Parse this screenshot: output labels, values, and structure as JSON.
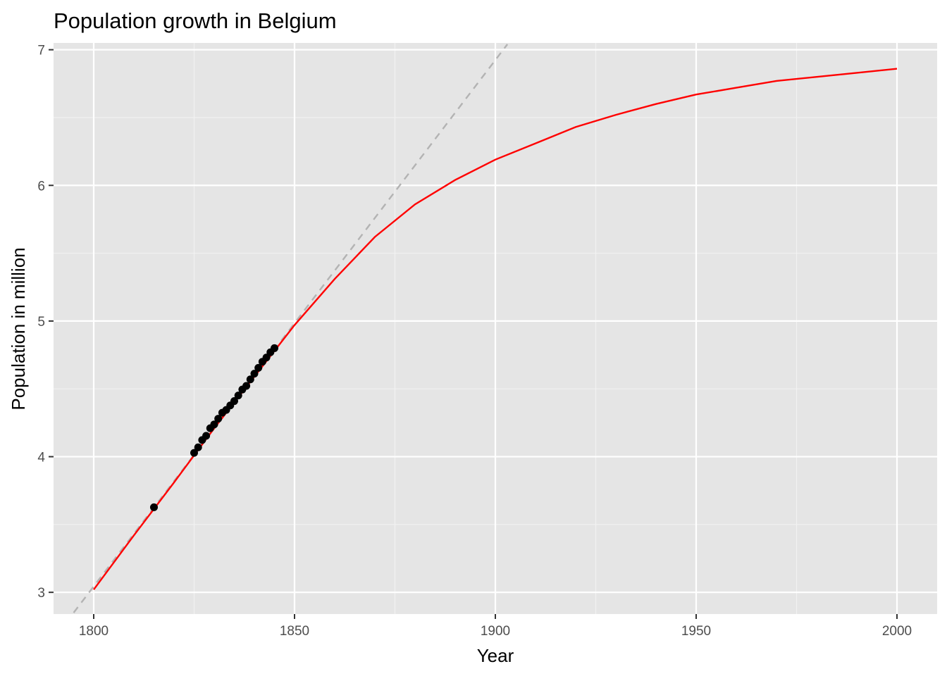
{
  "chart_data": {
    "type": "line",
    "title": "Population growth in Belgium",
    "xlabel": "Year",
    "ylabel": "Population in million",
    "xlim": [
      1790,
      2010
    ],
    "ylim": [
      2.84,
      7.05
    ],
    "xticks": [
      1800,
      1850,
      1900,
      1950,
      2000
    ],
    "xticks_minor": [
      1825,
      1875,
      1925,
      1975
    ],
    "yticks": [
      3,
      4,
      5,
      6,
      7
    ],
    "yticks_minor": [
      3.5,
      4.5,
      5.5,
      6.5
    ],
    "grid": true,
    "background": "#e5e5e5",
    "series": [
      {
        "kind": "scatter",
        "color": "#000000",
        "x": [
          1815,
          1825,
          1826,
          1827,
          1828,
          1829,
          1830,
          1831,
          1832,
          1833,
          1834,
          1835,
          1836,
          1837,
          1838,
          1839,
          1840,
          1841,
          1842,
          1843,
          1844,
          1845
        ],
        "y": [
          3.627,
          4.028,
          4.069,
          4.123,
          4.154,
          4.21,
          4.238,
          4.28,
          4.324,
          4.345,
          4.378,
          4.41,
          4.451,
          4.495,
          4.522,
          4.57,
          4.612,
          4.655,
          4.7,
          4.731,
          4.77,
          4.8
        ]
      },
      {
        "kind": "line",
        "style": "dashed",
        "color": "#b3b3b3",
        "x": [
          1795,
          1903
        ],
        "y": [
          2.85,
          7.04
        ]
      },
      {
        "kind": "line",
        "style": "solid",
        "color": "#ff0000",
        "x": [
          1800,
          1810,
          1820,
          1830,
          1840,
          1850,
          1860,
          1870,
          1880,
          1890,
          1900,
          1910,
          1920,
          1930,
          1940,
          1950,
          1960,
          1970,
          1980,
          1990,
          2000
        ],
        "y": [
          3.02,
          3.42,
          3.81,
          4.21,
          4.59,
          4.97,
          5.31,
          5.62,
          5.86,
          6.04,
          6.19,
          6.31,
          6.43,
          6.52,
          6.6,
          6.67,
          6.72,
          6.77,
          6.8,
          6.83,
          6.86
        ]
      }
    ]
  }
}
